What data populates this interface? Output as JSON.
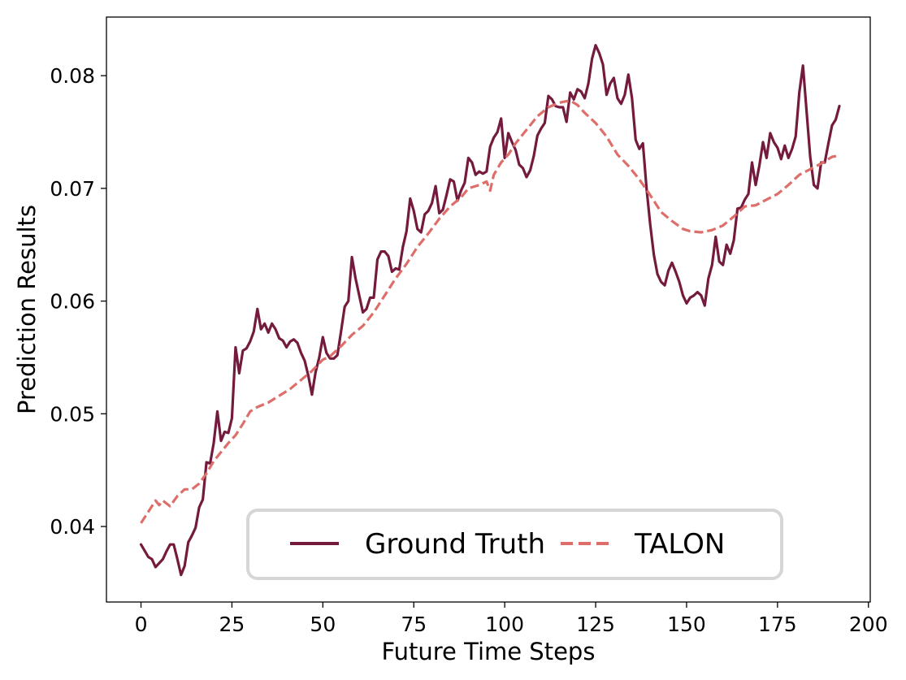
{
  "chart_data": {
    "type": "line",
    "xlabel": "Future Time Steps",
    "ylabel": "Prediction Results",
    "xlim": [
      -9.5,
      200.5
    ],
    "ylim": [
      0.0333,
      0.0852
    ],
    "x_ticks": [
      0,
      25,
      50,
      75,
      100,
      125,
      150,
      175,
      200
    ],
    "x_tick_labels": [
      "0",
      "25",
      "50",
      "75",
      "100",
      "125",
      "150",
      "175",
      "200"
    ],
    "y_ticks": [
      0.04,
      0.05,
      0.06,
      0.07,
      0.08
    ],
    "y_tick_labels": [
      "0.04",
      "0.05",
      "0.06",
      "0.07",
      "0.08"
    ],
    "grid": false,
    "legend_position": "bottom-center",
    "series": [
      {
        "name": "Ground Truth",
        "color": "#741b3d",
        "style": "solid",
        "points": [
          [
            0,
            0.0384
          ],
          [
            2,
            0.0373
          ],
          [
            3,
            0.0371
          ],
          [
            4,
            0.0364
          ],
          [
            6,
            0.0371
          ],
          [
            7,
            0.0378
          ],
          [
            8,
            0.0384
          ],
          [
            9,
            0.0384
          ],
          [
            10,
            0.0371
          ],
          [
            11,
            0.0357
          ],
          [
            12,
            0.0365
          ],
          [
            13,
            0.0386
          ],
          [
            14,
            0.0392
          ],
          [
            15,
            0.0399
          ],
          [
            16,
            0.0417
          ],
          [
            17,
            0.0424
          ],
          [
            18,
            0.0457
          ],
          [
            19,
            0.0456
          ],
          [
            20,
            0.0474
          ],
          [
            21,
            0.0502
          ],
          [
            22,
            0.0476
          ],
          [
            23,
            0.0484
          ],
          [
            24,
            0.0483
          ],
          [
            25,
            0.0496
          ],
          [
            26,
            0.0559
          ],
          [
            27,
            0.0536
          ],
          [
            28,
            0.0556
          ],
          [
            29,
            0.0558
          ],
          [
            30,
            0.0564
          ],
          [
            31,
            0.0573
          ],
          [
            32,
            0.0593
          ],
          [
            33,
            0.0575
          ],
          [
            34,
            0.058
          ],
          [
            35,
            0.0572
          ],
          [
            36,
            0.058
          ],
          [
            37,
            0.0575
          ],
          [
            38,
            0.0567
          ],
          [
            39,
            0.0565
          ],
          [
            40,
            0.0559
          ],
          [
            41,
            0.0564
          ],
          [
            42,
            0.0566
          ],
          [
            43,
            0.0563
          ],
          [
            44,
            0.0554
          ],
          [
            45,
            0.0547
          ],
          [
            46,
            0.0534
          ],
          [
            47,
            0.0517
          ],
          [
            48,
            0.0537
          ],
          [
            49,
            0.055
          ],
          [
            50,
            0.0568
          ],
          [
            51,
            0.0554
          ],
          [
            52,
            0.0549
          ],
          [
            53,
            0.0549
          ],
          [
            54,
            0.0552
          ],
          [
            55,
            0.0573
          ],
          [
            56,
            0.0595
          ],
          [
            57,
            0.06
          ],
          [
            58,
            0.0639
          ],
          [
            59,
            0.062
          ],
          [
            60,
            0.0605
          ],
          [
            61,
            0.059
          ],
          [
            62,
            0.0593
          ],
          [
            63,
            0.0603
          ],
          [
            64,
            0.0603
          ],
          [
            65,
            0.0637
          ],
          [
            66,
            0.0644
          ],
          [
            67,
            0.0644
          ],
          [
            68,
            0.064
          ],
          [
            69,
            0.0626
          ],
          [
            70,
            0.0629
          ],
          [
            71,
            0.0628
          ],
          [
            72,
            0.0648
          ],
          [
            73,
            0.0662
          ],
          [
            74,
            0.0691
          ],
          [
            75,
            0.068
          ],
          [
            76,
            0.0664
          ],
          [
            77,
            0.0661
          ],
          [
            78,
            0.0677
          ],
          [
            79,
            0.068
          ],
          [
            80,
            0.0687
          ],
          [
            81,
            0.0702
          ],
          [
            82,
            0.0678
          ],
          [
            83,
            0.0681
          ],
          [
            84,
            0.0694
          ],
          [
            85,
            0.0708
          ],
          [
            86,
            0.0706
          ],
          [
            87,
            0.0689
          ],
          [
            88,
            0.0698
          ],
          [
            89,
            0.0705
          ],
          [
            90,
            0.0727
          ],
          [
            91,
            0.0723
          ],
          [
            92,
            0.0712
          ],
          [
            93,
            0.0715
          ],
          [
            94,
            0.0713
          ],
          [
            95,
            0.0715
          ],
          [
            96,
            0.0737
          ],
          [
            97,
            0.0745
          ],
          [
            98,
            0.075
          ],
          [
            99,
            0.0762
          ],
          [
            100,
            0.0727
          ],
          [
            101,
            0.0749
          ],
          [
            102,
            0.0741
          ],
          [
            103,
            0.0734
          ],
          [
            104,
            0.0721
          ],
          [
            105,
            0.0718
          ],
          [
            106,
            0.071
          ],
          [
            107,
            0.0716
          ],
          [
            108,
            0.0729
          ],
          [
            109,
            0.0747
          ],
          [
            110,
            0.0753
          ],
          [
            111,
            0.0758
          ],
          [
            112,
            0.0782
          ],
          [
            113,
            0.0779
          ],
          [
            114,
            0.0773
          ],
          [
            115,
            0.0772
          ],
          [
            116,
            0.0772
          ],
          [
            117,
            0.0759
          ],
          [
            118,
            0.0785
          ],
          [
            119,
            0.0779
          ],
          [
            120,
            0.0788
          ],
          [
            121,
            0.0786
          ],
          [
            122,
            0.078
          ],
          [
            123,
            0.0793
          ],
          [
            124,
            0.0815
          ],
          [
            125,
            0.0827
          ],
          [
            126,
            0.082
          ],
          [
            127,
            0.081
          ],
          [
            128,
            0.0783
          ],
          [
            129,
            0.0793
          ],
          [
            130,
            0.0798
          ],
          [
            131,
            0.078
          ],
          [
            132,
            0.0775
          ],
          [
            133,
            0.0783
          ],
          [
            134,
            0.0801
          ],
          [
            135,
            0.078
          ],
          [
            136,
            0.0743
          ],
          [
            137,
            0.0735
          ],
          [
            138,
            0.074
          ],
          [
            139,
            0.07
          ],
          [
            140,
            0.0668
          ],
          [
            141,
            0.0641
          ],
          [
            142,
            0.0624
          ],
          [
            143,
            0.0617
          ],
          [
            144,
            0.0614
          ],
          [
            145,
            0.0627
          ],
          [
            146,
            0.0634
          ],
          [
            147,
            0.0626
          ],
          [
            148,
            0.0617
          ],
          [
            149,
            0.0605
          ],
          [
            150,
            0.0598
          ],
          [
            151,
            0.0603
          ],
          [
            152,
            0.0605
          ],
          [
            153,
            0.0608
          ],
          [
            154,
            0.0605
          ],
          [
            155,
            0.0596
          ],
          [
            156,
            0.062
          ],
          [
            157,
            0.0632
          ],
          [
            158,
            0.0657
          ],
          [
            159,
            0.0635
          ],
          [
            160,
            0.0632
          ],
          [
            161,
            0.065
          ],
          [
            162,
            0.0642
          ],
          [
            163,
            0.0654
          ],
          [
            164,
            0.0682
          ],
          [
            165,
            0.0683
          ],
          [
            166,
            0.069
          ],
          [
            167,
            0.0695
          ],
          [
            168,
            0.0723
          ],
          [
            169,
            0.0703
          ],
          [
            170,
            0.072
          ],
          [
            171,
            0.0741
          ],
          [
            172,
            0.0727
          ],
          [
            173,
            0.0749
          ],
          [
            174,
            0.0741
          ],
          [
            175,
            0.0736
          ],
          [
            176,
            0.0726
          ],
          [
            177,
            0.0738
          ],
          [
            178,
            0.0727
          ],
          [
            179,
            0.0735
          ],
          [
            180,
            0.0746
          ],
          [
            181,
            0.0785
          ],
          [
            182,
            0.0809
          ],
          [
            183,
            0.0768
          ],
          [
            184,
            0.0728
          ],
          [
            185,
            0.0703
          ],
          [
            186,
            0.07
          ],
          [
            187,
            0.0723
          ],
          [
            188,
            0.0723
          ],
          [
            189,
            0.074
          ],
          [
            190,
            0.0756
          ],
          [
            191,
            0.0761
          ],
          [
            192,
            0.0773
          ]
        ]
      },
      {
        "name": "TALON",
        "color": "#dd6e6a",
        "style": "dashed",
        "points": [
          [
            0,
            0.0403
          ],
          [
            2,
            0.0413
          ],
          [
            4,
            0.0423
          ],
          [
            5,
            0.0419
          ],
          [
            6,
            0.0423
          ],
          [
            8,
            0.0418
          ],
          [
            10,
            0.0427
          ],
          [
            12,
            0.0433
          ],
          [
            14,
            0.0433
          ],
          [
            16,
            0.0438
          ],
          [
            18,
            0.0447
          ],
          [
            20,
            0.0458
          ],
          [
            22,
            0.0466
          ],
          [
            24,
            0.0474
          ],
          [
            26,
            0.0481
          ],
          [
            28,
            0.0491
          ],
          [
            30,
            0.0502
          ],
          [
            32,
            0.0506
          ],
          [
            35,
            0.051
          ],
          [
            38,
            0.0516
          ],
          [
            41,
            0.0522
          ],
          [
            44,
            0.053
          ],
          [
            47,
            0.0538
          ],
          [
            50,
            0.0548
          ],
          [
            52,
            0.0551
          ],
          [
            55,
            0.056
          ],
          [
            58,
            0.057
          ],
          [
            61,
            0.0578
          ],
          [
            64,
            0.059
          ],
          [
            67,
            0.0605
          ],
          [
            70,
            0.062
          ],
          [
            73,
            0.0633
          ],
          [
            76,
            0.0648
          ],
          [
            79,
            0.066
          ],
          [
            82,
            0.0673
          ],
          [
            85,
            0.0684
          ],
          [
            88,
            0.0692
          ],
          [
            90,
            0.07
          ],
          [
            93,
            0.0703
          ],
          [
            95,
            0.0706
          ],
          [
            96,
            0.0698
          ],
          [
            97,
            0.0712
          ],
          [
            99,
            0.0723
          ],
          [
            101,
            0.073
          ],
          [
            103,
            0.074
          ],
          [
            106,
            0.0752
          ],
          [
            109,
            0.0764
          ],
          [
            112,
            0.0772
          ],
          [
            115,
            0.0776
          ],
          [
            118,
            0.0778
          ],
          [
            120,
            0.0774
          ],
          [
            122,
            0.0767
          ],
          [
            125,
            0.0758
          ],
          [
            128,
            0.0746
          ],
          [
            131,
            0.073
          ],
          [
            134,
            0.072
          ],
          [
            137,
            0.0708
          ],
          [
            140,
            0.0694
          ],
          [
            143,
            0.0679
          ],
          [
            146,
            0.0671
          ],
          [
            149,
            0.0664
          ],
          [
            151,
            0.0662
          ],
          [
            154,
            0.0661
          ],
          [
            157,
            0.0663
          ],
          [
            160,
            0.0667
          ],
          [
            163,
            0.0675
          ],
          [
            166,
            0.0684
          ],
          [
            169,
            0.0685
          ],
          [
            172,
            0.069
          ],
          [
            175,
            0.0695
          ],
          [
            178,
            0.0703
          ],
          [
            181,
            0.0712
          ],
          [
            184,
            0.0717
          ],
          [
            187,
            0.0722
          ],
          [
            190,
            0.0728
          ],
          [
            192,
            0.0729
          ]
        ]
      }
    ]
  }
}
